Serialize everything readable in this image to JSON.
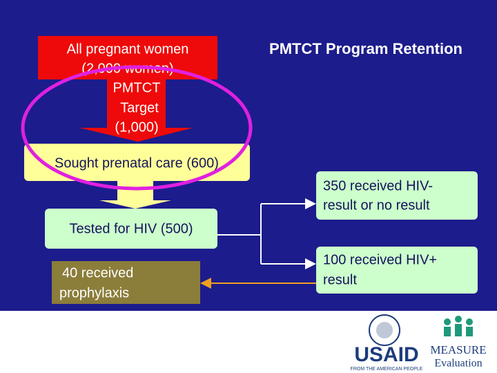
{
  "title": "PMTCT Program Retention",
  "nodes": [
    {
      "lines": [
        "All pregnant women",
        "(2,000 women)"
      ]
    },
    {
      "lines": [
        "PMTCT",
        "Target",
        "(1,000)"
      ]
    },
    {
      "lines": [
        "Sought prenatal care (600)"
      ]
    },
    {
      "lines": [
        "Tested for HIV (500)"
      ]
    },
    {
      "lines": [
        "40 received",
        "prophylaxis"
      ]
    },
    {
      "lines": [
        "350 received HIV-",
        "result or no result"
      ]
    },
    {
      "lines": [
        "100 received HIV+",
        "result"
      ]
    }
  ],
  "logos": {
    "usaid": "USAID",
    "usaid_tagline": "FROM THE AMERICAN PEOPLE",
    "measure": "MEASURE",
    "measure_sub": "Evaluation"
  }
}
